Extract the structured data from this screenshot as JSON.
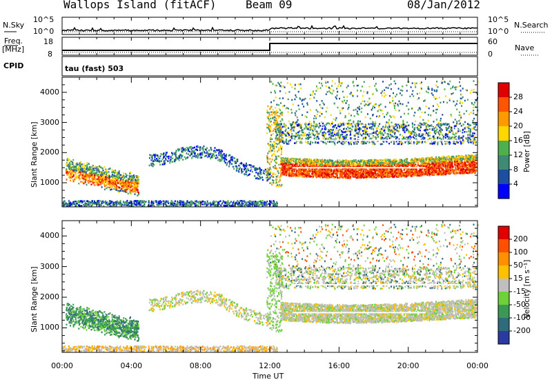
{
  "header": {
    "site": "Wallops Island (fitACF)",
    "beam": "Beam 09",
    "date": "08/Jan/2012"
  },
  "strips": {
    "nsky_label": "N.Sky",
    "nsky_ticks": [
      "10^5",
      "10^0"
    ],
    "nsearch_label": "N.Search",
    "nsearch_ticks": [
      "10^5",
      "10^0"
    ],
    "freq_label": "Freq.",
    "freq_unit": "[MHz]",
    "freq_ticks": [
      "18",
      "8"
    ],
    "nave_label": "Nave",
    "nave_ticks": [
      "60",
      "0"
    ],
    "cpid_label": "CPID",
    "cpid_value": "tau (fast) 503"
  },
  "colors": {
    "power_scale": [
      "#0000ff",
      "#1c4fa0",
      "#3f8a72",
      "#4db04d",
      "#ffd700",
      "#ff9900",
      "#ff5500",
      "#e00000"
    ],
    "velocity_scale": [
      "#2b3aa0",
      "#2f6b7a",
      "#3a9a55",
      "#6fd13a",
      "#bfbfbf",
      "#ffc000",
      "#ff9000",
      "#ff5000",
      "#e00000"
    ]
  },
  "chart_data": [
    {
      "type": "heatmap",
      "name": "power",
      "ylabel": "Slant Range [km]",
      "yticks": [
        "4000",
        "3000",
        "2000",
        "1000"
      ],
      "ytick_values": [
        4000,
        3000,
        2000,
        1000
      ],
      "ylim": [
        200,
        4500
      ],
      "xlim": [
        0,
        24
      ],
      "colorbar_label": "Power [dB]",
      "colorbar_ticks": [
        "28",
        "24",
        "20",
        "16",
        "12",
        "8",
        "4"
      ],
      "colorbar_values": [
        28,
        24,
        20,
        16,
        12,
        8,
        4
      ],
      "clim": [
        0,
        32
      ]
    },
    {
      "type": "heatmap",
      "name": "velocity",
      "ylabel": "Slant Range [km]",
      "yticks": [
        "4000",
        "3000",
        "2000",
        "1000"
      ],
      "ytick_values": [
        4000,
        3000,
        2000,
        1000
      ],
      "ylim": [
        200,
        4500
      ],
      "xlim": [
        0,
        24
      ],
      "colorbar_label": "Velocity [m s⁻¹]",
      "colorbar_ticks": [
        "200",
        "100",
        "50",
        "15",
        "-15",
        "-50",
        "-100",
        "-200"
      ],
      "colorbar_values": [
        200,
        100,
        50,
        15,
        -15,
        -50,
        -100,
        -200
      ],
      "clim": [
        -250,
        250
      ]
    }
  ],
  "xaxis": {
    "label": "Time UT",
    "ticks": [
      "00:00",
      "04:00",
      "08:00",
      "12:00",
      "16:00",
      "20:00",
      "00:00"
    ],
    "tick_hours": [
      0,
      4,
      8,
      12,
      16,
      20,
      24
    ]
  }
}
